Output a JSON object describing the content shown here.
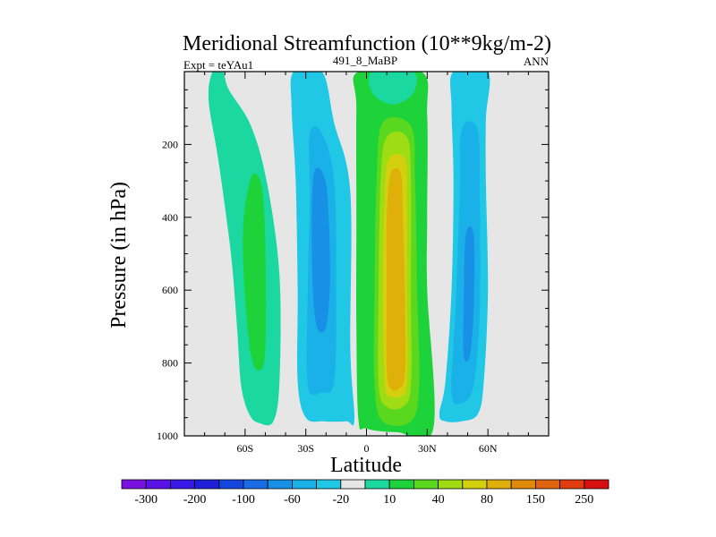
{
  "chart_data": {
    "type": "contour",
    "title": "Meridional Streamfunction (10**9kg/m-2)",
    "subtitle_left": "Expt = teYAu1",
    "subtitle_center": "491_8_MaBP",
    "subtitle_right": "ANN",
    "xlabel": "Latitude",
    "ylabel": "Pressure (in hPa)",
    "xlim": [
      -90,
      90
    ],
    "ylim": [
      1000,
      0
    ],
    "x_ticks": [
      {
        "value": -60,
        "label": "60S"
      },
      {
        "value": -30,
        "label": "30S"
      },
      {
        "value": 0,
        "label": "0"
      },
      {
        "value": 30,
        "label": "30N"
      },
      {
        "value": 60,
        "label": "60N"
      }
    ],
    "y_ticks": [
      {
        "value": 200,
        "label": "200"
      },
      {
        "value": 400,
        "label": "400"
      },
      {
        "value": 600,
        "label": "600"
      },
      {
        "value": 800,
        "label": "800"
      },
      {
        "value": 1000,
        "label": "1000"
      }
    ],
    "colorbar": {
      "colors": [
        "#7a10e0",
        "#5a12e6",
        "#3a18e8",
        "#2020d8",
        "#1446e0",
        "#1a6ce6",
        "#1890e6",
        "#1ab0e8",
        "#20c8e6",
        "#e6e6e6",
        "#1ad8a0",
        "#1ed23a",
        "#5ad81e",
        "#a0dc14",
        "#d4d00e",
        "#e0b00a",
        "#e08a0a",
        "#e06410",
        "#e03c10",
        "#d81010"
      ],
      "labels": [
        "-300",
        "-200",
        "-100",
        "-60",
        "-20",
        "10",
        "40",
        "80",
        "150",
        "250"
      ]
    },
    "regions": [
      {
        "name": "sh-polar-positive-cell",
        "level": 10,
        "color": "#1ad8a0",
        "outline": [
          [
            -76,
            0
          ],
          [
            -71,
            0
          ],
          [
            -68,
            50
          ],
          [
            -57,
            150
          ],
          [
            -49,
            310
          ],
          [
            -43,
            560
          ],
          [
            -43,
            850
          ],
          [
            -46,
            960
          ],
          [
            -53,
            965
          ],
          [
            -58,
            940
          ],
          [
            -62,
            860
          ],
          [
            -64,
            700
          ],
          [
            -67,
            500
          ],
          [
            -73,
            250
          ],
          [
            -78,
            80
          ]
        ]
      },
      {
        "name": "sh-polar-core",
        "level": 40,
        "color": "#1ed23a",
        "outline": [
          [
            -57,
            290
          ],
          [
            -52,
            310
          ],
          [
            -50,
            470
          ],
          [
            -50,
            760
          ],
          [
            -53,
            820
          ],
          [
            -57,
            780
          ],
          [
            -60,
            620
          ],
          [
            -61,
            430
          ]
        ]
      },
      {
        "name": "sh-ferrel-negative-cell",
        "level": -20,
        "color": "#20c8e6",
        "outline": [
          [
            -36,
            0
          ],
          [
            -22,
            0
          ],
          [
            -16,
            140
          ],
          [
            -8,
            330
          ],
          [
            -8,
            760
          ],
          [
            -6,
            955
          ],
          [
            -10,
            960
          ],
          [
            -21,
            960
          ],
          [
            -30,
            950
          ],
          [
            -34,
            850
          ],
          [
            -34,
            600
          ],
          [
            -35,
            300
          ],
          [
            -37,
            100
          ]
        ]
      },
      {
        "name": "sh-ferrel-core",
        "level": -60,
        "color": "#1ab0e8",
        "outline": [
          [
            -28,
            170
          ],
          [
            -22,
            170
          ],
          [
            -16,
            300
          ],
          [
            -15,
            600
          ],
          [
            -16,
            850
          ],
          [
            -22,
            880
          ],
          [
            -29,
            860
          ],
          [
            -29,
            600
          ],
          [
            -28,
            350
          ]
        ]
      },
      {
        "name": "sh-ferrel-inner",
        "level": -100,
        "color": "#1890e6",
        "outline": [
          [
            -26,
            280
          ],
          [
            -20,
            310
          ],
          [
            -18,
            550
          ],
          [
            -20,
            700
          ],
          [
            -25,
            690
          ],
          [
            -27,
            500
          ]
        ]
      },
      {
        "name": "tropical-positive-cell",
        "level": 10,
        "color": "#1ed23a",
        "outline": [
          [
            -4,
            0
          ],
          [
            27,
            0
          ],
          [
            30,
            120
          ],
          [
            30,
            400
          ],
          [
            30,
            600
          ],
          [
            33,
            980
          ],
          [
            15,
            990
          ],
          [
            0,
            980
          ],
          [
            -4,
            955
          ],
          [
            -5,
            700
          ],
          [
            -5,
            400
          ],
          [
            -5,
            100
          ]
        ]
      },
      {
        "name": "tropical-pos-top-lobe",
        "level": 10,
        "color": "#1ad8a0",
        "outline": [
          [
            3,
            0
          ],
          [
            23,
            0
          ],
          [
            23,
            60
          ],
          [
            13,
            90
          ],
          [
            3,
            60
          ]
        ]
      },
      {
        "name": "tropical-level-40",
        "level": 40,
        "color": "#5ad81e",
        "outline": [
          [
            8,
            140
          ],
          [
            22,
            150
          ],
          [
            24,
            300
          ],
          [
            25,
            600
          ],
          [
            26,
            860
          ],
          [
            22,
            960
          ],
          [
            8,
            960
          ],
          [
            4,
            860
          ],
          [
            4,
            600
          ],
          [
            5,
            300
          ]
        ]
      },
      {
        "name": "tropical-level-80",
        "level": 80,
        "color": "#a0dc14",
        "outline": [
          [
            10,
            180
          ],
          [
            20,
            180
          ],
          [
            22,
            300
          ],
          [
            22,
            600
          ],
          [
            22,
            860
          ],
          [
            18,
            920
          ],
          [
            10,
            920
          ],
          [
            6,
            860
          ],
          [
            6,
            600
          ],
          [
            7,
            300
          ]
        ]
      },
      {
        "name": "tropical-level-150",
        "level": 150,
        "color": "#d4d00e",
        "outline": [
          [
            11,
            240
          ],
          [
            19,
            240
          ],
          [
            20,
            350
          ],
          [
            20,
            600
          ],
          [
            20,
            850
          ],
          [
            17,
            890
          ],
          [
            11,
            890
          ],
          [
            9,
            850
          ],
          [
            8,
            600
          ],
          [
            9,
            350
          ]
        ]
      },
      {
        "name": "tropical-core-250",
        "level": 250,
        "color": "#e0b00a",
        "outline": [
          [
            12,
            280
          ],
          [
            17,
            280
          ],
          [
            18,
            400
          ],
          [
            19,
            620
          ],
          [
            19,
            830
          ],
          [
            16,
            870
          ],
          [
            12,
            870
          ],
          [
            10,
            820
          ],
          [
            10,
            600
          ],
          [
            10,
            400
          ]
        ]
      },
      {
        "name": "nh-negative-cell",
        "level": -20,
        "color": "#20c8e6",
        "outline": [
          [
            43,
            0
          ],
          [
            60,
            0
          ],
          [
            59,
            130
          ],
          [
            59,
            300
          ],
          [
            60,
            600
          ],
          [
            58,
            850
          ],
          [
            55,
            940
          ],
          [
            47,
            960
          ],
          [
            39,
            960
          ],
          [
            36,
            940
          ],
          [
            39,
            850
          ],
          [
            42,
            600
          ],
          [
            43,
            300
          ],
          [
            42,
            100
          ]
        ]
      },
      {
        "name": "nh-negative-core",
        "level": -60,
        "color": "#1ab0e8",
        "outline": [
          [
            47,
            160
          ],
          [
            55,
            160
          ],
          [
            56,
            350
          ],
          [
            56,
            650
          ],
          [
            53,
            860
          ],
          [
            47,
            910
          ],
          [
            42,
            880
          ],
          [
            44,
            650
          ],
          [
            46,
            350
          ]
        ]
      },
      {
        "name": "nh-negative-inner",
        "level": -100,
        "color": "#1890e6",
        "outline": [
          [
            49,
            450
          ],
          [
            53,
            450
          ],
          [
            53,
            650
          ],
          [
            51,
            780
          ],
          [
            48,
            780
          ],
          [
            48,
            650
          ]
        ]
      }
    ]
  }
}
